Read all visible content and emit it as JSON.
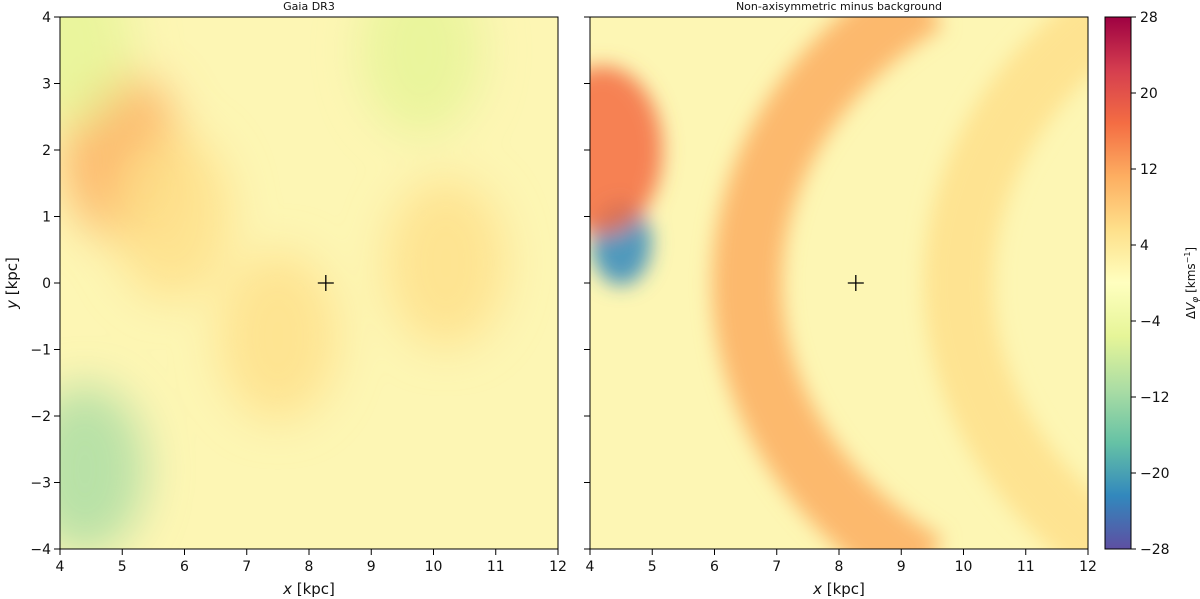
{
  "chart_data": [
    {
      "type": "heatmap",
      "title": "Gaia DR3",
      "xlabel_var": "x",
      "xlabel_unit": " [kpc]",
      "ylabel_var": "y",
      "ylabel_unit": " [kpc]",
      "xlim": [
        4,
        12
      ],
      "ylim": [
        -4,
        4
      ],
      "xticks": [
        4,
        5,
        6,
        7,
        8,
        9,
        10,
        11,
        12
      ],
      "yticks": [
        -4,
        -3,
        -2,
        -1,
        0,
        1,
        2,
        3,
        4
      ],
      "marker": {
        "x": 8.27,
        "y": 0,
        "symbol": "+"
      },
      "features": [
        {
          "x": 5.0,
          "y": 1.9,
          "value": 10
        },
        {
          "x": 5.8,
          "y": 1.0,
          "value": 7
        },
        {
          "x": 7.5,
          "y": -0.8,
          "value": 6
        },
        {
          "x": 10.2,
          "y": 0.3,
          "value": 5
        },
        {
          "x": 4.4,
          "y": -2.8,
          "value": -9
        },
        {
          "x": 4.2,
          "y": 3.6,
          "value": -6
        },
        {
          "x": 9.8,
          "y": 3.5,
          "value": -3
        }
      ]
    },
    {
      "type": "heatmap",
      "title": "Non-axisymmetric minus background",
      "xlabel_var": "x",
      "xlabel_unit": " [kpc]",
      "xlim": [
        4,
        12
      ],
      "ylim": [
        -4,
        4
      ],
      "xticks": [
        4,
        5,
        6,
        7,
        8,
        9,
        10,
        11,
        12
      ],
      "marker": {
        "x": 8.27,
        "y": 0,
        "symbol": "+"
      },
      "features": [
        {
          "x": 6.5,
          "y": 0,
          "value": 10,
          "shape": "arc"
        },
        {
          "x": 9.9,
          "y": 0,
          "value": 5,
          "shape": "arc"
        },
        {
          "x": 4.5,
          "y": 0.6,
          "value": -22
        },
        {
          "x": 4.2,
          "y": 2.0,
          "value": 14
        }
      ]
    }
  ],
  "colorbar": {
    "label_prefix": "Δ",
    "label_var": "V",
    "label_sub": "φ",
    "label_unit": " [kms",
    "label_exp": "−1",
    "label_close": "]",
    "vmin": -28,
    "vmax": 28,
    "ticks": [
      -28,
      -20,
      -12,
      -4,
      4,
      12,
      20,
      28
    ],
    "tick_labels": [
      "−28",
      "−20",
      "−12",
      "−4",
      "4",
      "12",
      "20",
      "28"
    ],
    "colors": [
      "#5e4fa2",
      "#3288bd",
      "#66c2a5",
      "#abdda4",
      "#e6f598",
      "#ffffbf",
      "#fee08b",
      "#fdae61",
      "#f46d43",
      "#d53e4f",
      "#9e0142"
    ]
  }
}
